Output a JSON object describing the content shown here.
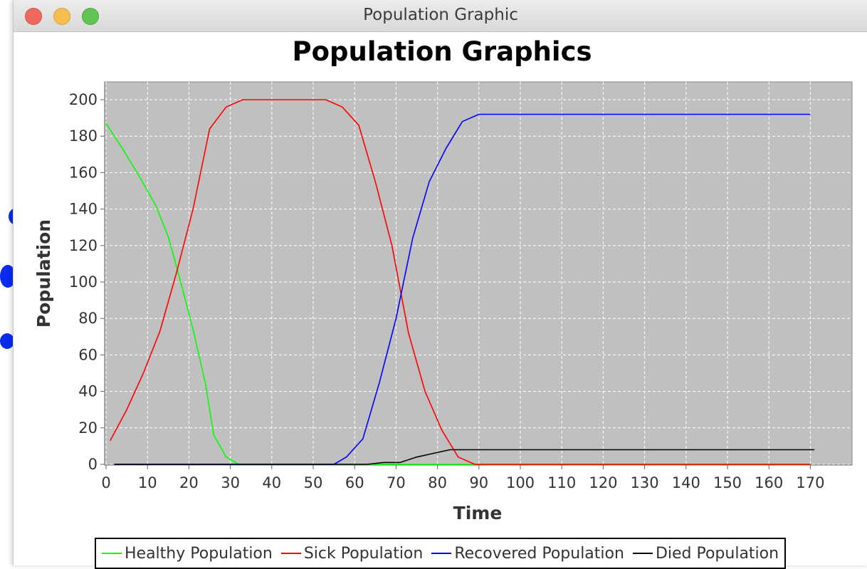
{
  "window": {
    "title": "Population Graphic",
    "controls": {
      "close_color": "#ee6a5f",
      "minimize_color": "#f5be4f",
      "zoom_color": "#61c454"
    }
  },
  "chart_data": {
    "type": "line",
    "title": "Population Graphics",
    "xlabel": "Time",
    "ylabel": "Population",
    "xlim": [
      0,
      180
    ],
    "ylim": [
      0,
      210
    ],
    "xticks": [
      0,
      10,
      20,
      30,
      40,
      50,
      60,
      70,
      80,
      90,
      100,
      110,
      120,
      130,
      140,
      150,
      160,
      170
    ],
    "yticks": [
      0,
      20,
      40,
      60,
      80,
      100,
      120,
      140,
      160,
      180,
      200
    ],
    "grid": true,
    "plot_background": "#c0c0c0",
    "legend_position": "bottom",
    "series": [
      {
        "name": "Healthy Population",
        "color": "#00ff00",
        "points": [
          [
            0,
            187
          ],
          [
            4,
            173
          ],
          [
            8,
            158
          ],
          [
            12,
            142
          ],
          [
            15,
            125
          ],
          [
            18,
            100
          ],
          [
            21,
            74
          ],
          [
            24,
            44
          ],
          [
            26,
            16
          ],
          [
            29,
            4
          ],
          [
            32,
            0
          ],
          [
            90,
            0
          ],
          [
            170,
            0
          ]
        ]
      },
      {
        "name": "Sick Population",
        "color": "#ff0000",
        "points": [
          [
            1,
            13
          ],
          [
            5,
            30
          ],
          [
            9,
            50
          ],
          [
            13,
            73
          ],
          [
            17,
            105
          ],
          [
            21,
            140
          ],
          [
            25,
            184
          ],
          [
            29,
            196
          ],
          [
            33,
            200
          ],
          [
            40,
            200
          ],
          [
            47,
            200
          ],
          [
            53,
            200
          ],
          [
            57,
            196
          ],
          [
            61,
            186
          ],
          [
            65,
            155
          ],
          [
            69,
            120
          ],
          [
            73,
            72
          ],
          [
            77,
            40
          ],
          [
            81,
            19
          ],
          [
            85,
            4
          ],
          [
            89,
            0
          ],
          [
            170,
            0
          ]
        ]
      },
      {
        "name": "Recovered Population",
        "color": "#0000ff",
        "points": [
          [
            2,
            0
          ],
          [
            55,
            0
          ],
          [
            58,
            4
          ],
          [
            62,
            14
          ],
          [
            66,
            45
          ],
          [
            70,
            80
          ],
          [
            74,
            124
          ],
          [
            78,
            155
          ],
          [
            82,
            173
          ],
          [
            86,
            188
          ],
          [
            90,
            192
          ],
          [
            130,
            192
          ],
          [
            170,
            192
          ]
        ]
      },
      {
        "name": "Died Population",
        "color": "#000000",
        "points": [
          [
            2,
            0
          ],
          [
            63,
            0
          ],
          [
            67,
            1
          ],
          [
            71,
            1
          ],
          [
            75,
            4
          ],
          [
            79,
            6
          ],
          [
            83,
            8
          ],
          [
            87,
            8
          ],
          [
            130,
            8
          ],
          [
            171,
            8
          ]
        ]
      }
    ]
  }
}
